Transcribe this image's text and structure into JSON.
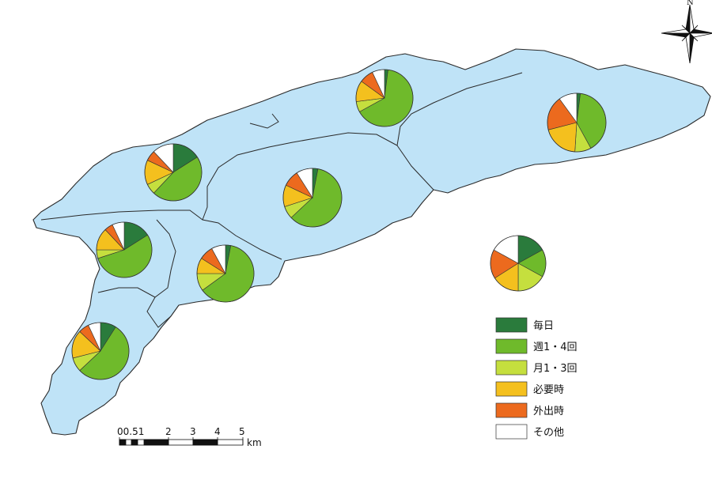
{
  "categories": [
    {
      "key": "daily",
      "label": "毎日",
      "color": "#2a7b3c"
    },
    {
      "key": "weekly",
      "label": "週1・4回",
      "color": "#6fba2b"
    },
    {
      "key": "monthly",
      "label": "月1・3回",
      "color": "#c5df3e"
    },
    {
      "key": "asneeded",
      "label": "必要時",
      "color": "#f4c01e"
    },
    {
      "key": "outing",
      "label": "外出時",
      "color": "#ec6a1e"
    },
    {
      "key": "other",
      "label": "その他",
      "color": "#ffffff"
    }
  ],
  "regions": [
    {
      "id": "northeast-1",
      "shares": [
        0.02,
        0.4,
        0.09,
        0.2,
        0.19,
        0.1
      ]
    },
    {
      "id": "north-1",
      "shares": [
        0.02,
        0.65,
        0.06,
        0.12,
        0.08,
        0.07
      ]
    },
    {
      "id": "northwest",
      "shares": [
        0.16,
        0.46,
        0.06,
        0.14,
        0.06,
        0.12
      ]
    },
    {
      "id": "central",
      "shares": [
        0.03,
        0.6,
        0.07,
        0.12,
        0.09,
        0.09
      ]
    },
    {
      "id": "west",
      "shares": [
        0.16,
        0.54,
        0.05,
        0.13,
        0.05,
        0.07
      ]
    },
    {
      "id": "south",
      "shares": [
        0.03,
        0.62,
        0.1,
        0.09,
        0.08,
        0.08
      ]
    },
    {
      "id": "southwest",
      "shares": [
        0.09,
        0.54,
        0.08,
        0.16,
        0.06,
        0.07
      ]
    },
    {
      "id": "total",
      "shares": [
        0.17,
        0.16,
        0.17,
        0.16,
        0.17,
        0.17
      ]
    }
  ],
  "scalebar": {
    "ticks": [
      "00.51",
      "2",
      "3",
      "4",
      "5"
    ],
    "unit": "km"
  },
  "north_arrow": {
    "label": "N"
  }
}
